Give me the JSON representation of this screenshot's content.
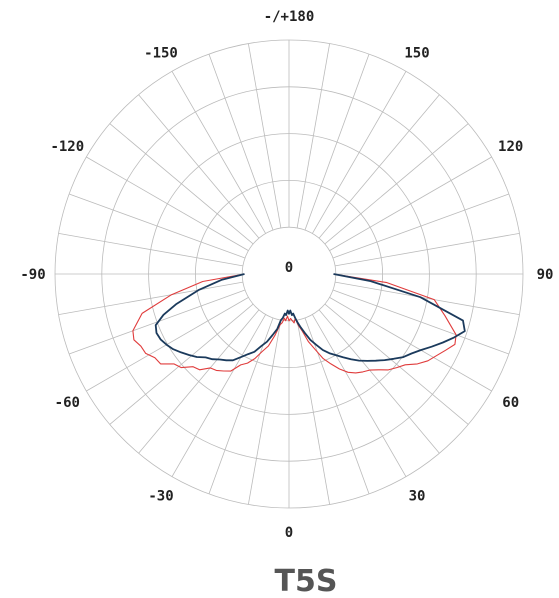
{
  "chart_data": {
    "type": "polar-line",
    "title": "T5S",
    "angle_tick_labels": [
      {
        "angle": 180,
        "label": "-/+180"
      },
      {
        "angle": -150,
        "label": "-150"
      },
      {
        "angle": 150,
        "label": "150"
      },
      {
        "angle": -120,
        "label": "-120"
      },
      {
        "angle": 120,
        "label": "120"
      },
      {
        "angle": -90,
        "label": "-90"
      },
      {
        "angle": 90,
        "label": "90"
      },
      {
        "angle": -60,
        "label": "-60"
      },
      {
        "angle": 60,
        "label": "60"
      },
      {
        "angle": -30,
        "label": "-30"
      },
      {
        "angle": 30,
        "label": "30"
      },
      {
        "angle": 0,
        "label": "0"
      }
    ],
    "center_label": "0",
    "angle_range": [
      -180,
      180
    ],
    "radial_range": [
      0,
      5
    ],
    "radial_rings": [
      1,
      2,
      3,
      4,
      5
    ],
    "spoke_step_deg": 10,
    "grid": true,
    "colors": {
      "series_red": "#e03c3c",
      "series_navy": "#1b3a5c",
      "grid": "#bbbbbb"
    },
    "series": [
      {
        "color": "#e03c3c",
        "angles": [
          -90,
          -85,
          -80,
          -75,
          -70,
          -67,
          -64,
          -61,
          -58,
          -55,
          -52,
          -49,
          -46,
          -43,
          -40,
          -37,
          -34,
          -31,
          -28,
          -25,
          -22,
          -19,
          -16,
          -13,
          -10,
          -8,
          -6,
          -4,
          -2,
          0,
          2,
          4,
          6,
          8,
          10,
          13,
          16,
          19,
          22,
          25,
          28,
          31,
          34,
          37,
          40,
          43,
          46,
          49,
          52,
          55,
          58,
          61,
          64,
          67,
          70,
          75,
          80,
          85,
          90
        ],
        "r": [
          0.95,
          1.85,
          2.55,
          3.25,
          3.55,
          3.6,
          3.52,
          3.5,
          3.38,
          3.35,
          3.12,
          3.05,
          2.85,
          2.8,
          2.62,
          2.58,
          2.5,
          2.42,
          2.2,
          2.1,
          1.95,
          1.75,
          1.6,
          1.35,
          1.1,
          1.05,
          0.95,
          1.0,
          0.9,
          1.0,
          0.95,
          1.0,
          1.05,
          0.95,
          1.1,
          1.25,
          1.5,
          1.7,
          1.95,
          2.12,
          2.3,
          2.45,
          2.55,
          2.62,
          2.68,
          2.8,
          2.95,
          3.05,
          3.15,
          3.35,
          3.5,
          3.6,
          3.72,
          3.85,
          3.8,
          3.45,
          3.15,
          2.1,
          0.95
        ]
      },
      {
        "color": "#1b3a5c",
        "angles": [
          -90,
          -85,
          -80,
          -75,
          -72,
          -69,
          -66,
          -63,
          -60,
          -57,
          -54,
          -51,
          -48,
          -45,
          -42,
          -39,
          -36,
          -33,
          -30,
          -27,
          -24,
          -21,
          -18,
          -15,
          -12,
          -10,
          -8,
          -6,
          -4,
          -2,
          0,
          2,
          4,
          6,
          8,
          10,
          12,
          15,
          18,
          21,
          24,
          27,
          30,
          33,
          36,
          39,
          42,
          45,
          48,
          51,
          54,
          57,
          60,
          63,
          66,
          69,
          72,
          75,
          80,
          85,
          90
        ],
        "r": [
          0.95,
          1.45,
          1.95,
          2.5,
          2.82,
          3.05,
          3.1,
          3.08,
          3.02,
          2.95,
          2.85,
          2.75,
          2.65,
          2.52,
          2.45,
          2.35,
          2.28,
          2.2,
          2.05,
          1.92,
          1.82,
          1.65,
          1.52,
          1.35,
          1.2,
          1.0,
          0.95,
          0.85,
          0.88,
          0.78,
          0.85,
          0.78,
          0.88,
          0.85,
          0.95,
          1.05,
          1.15,
          1.3,
          1.48,
          1.62,
          1.78,
          1.9,
          2.0,
          2.12,
          2.25,
          2.38,
          2.5,
          2.62,
          2.75,
          2.88,
          3.02,
          3.12,
          3.25,
          3.42,
          3.6,
          3.78,
          3.95,
          3.85,
          2.85,
          1.75,
          0.95
        ]
      }
    ]
  }
}
